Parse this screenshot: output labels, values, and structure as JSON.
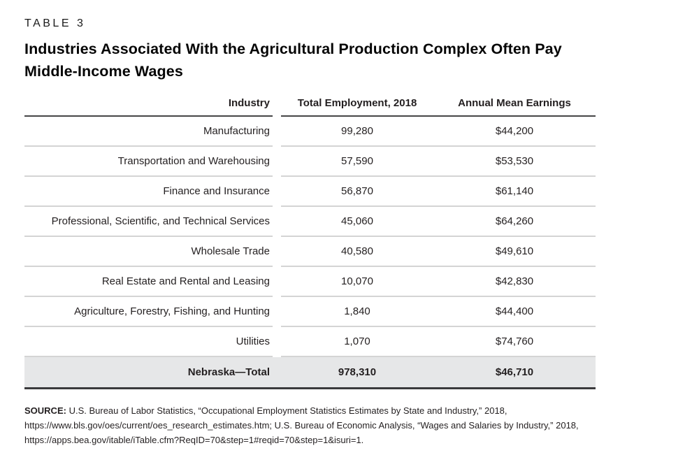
{
  "page": {
    "eyebrow": "TABLE 3",
    "title_line1": "Industries Associated With the Agricultural Production Complex Often Pay",
    "title_line2": "Middle-Income Wages"
  },
  "table": {
    "columns": [
      "Industry",
      "Total Employment, 2018",
      "Annual Mean Earnings"
    ],
    "rows": [
      {
        "industry": "Manufacturing",
        "employment": "99,280",
        "earnings": "$44,200"
      },
      {
        "industry": "Transportation and Warehousing",
        "employment": "57,590",
        "earnings": "$53,530"
      },
      {
        "industry": "Finance and Insurance",
        "employment": "56,870",
        "earnings": "$61,140"
      },
      {
        "industry": "Professional, Scientific, and Technical Services",
        "employment": "45,060",
        "earnings": "$64,260"
      },
      {
        "industry": "Wholesale Trade",
        "employment": "40,580",
        "earnings": "$49,610"
      },
      {
        "industry": "Real Estate and Rental and Leasing",
        "employment": "10,070",
        "earnings": "$42,830"
      },
      {
        "industry": "Agriculture, Forestry, Fishing, and Hunting",
        "employment": "1,840",
        "earnings": "$44,400"
      },
      {
        "industry": "Utilities",
        "employment": "1,070",
        "earnings": "$74,760"
      }
    ],
    "total_row": {
      "industry": "Nebraska—Total",
      "employment": "978,310",
      "earnings": "$46,710"
    }
  },
  "source": {
    "label": "SOURCE:",
    "text": "U.S. Bureau of Labor Statistics, “Occupational Employment Statistics Estimates by State and Industry,” 2018, https://www.bls.gov/oes/current/oes_research_estimates.htm; U.S. Bureau of Economic Analysis, “Wages and Salaries by Industry,” 2018, https://apps.bea.gov/itable/iTable.cfm?ReqID=70&step=1#reqid=70&step=1&isuri=1."
  },
  "colors": {
    "text": "#231f20",
    "header_rule": "#454547",
    "row_rule": "#d4d4d4",
    "total_row_bg": "#e6e7e8",
    "bottom_rule": "#3a3a3c"
  }
}
